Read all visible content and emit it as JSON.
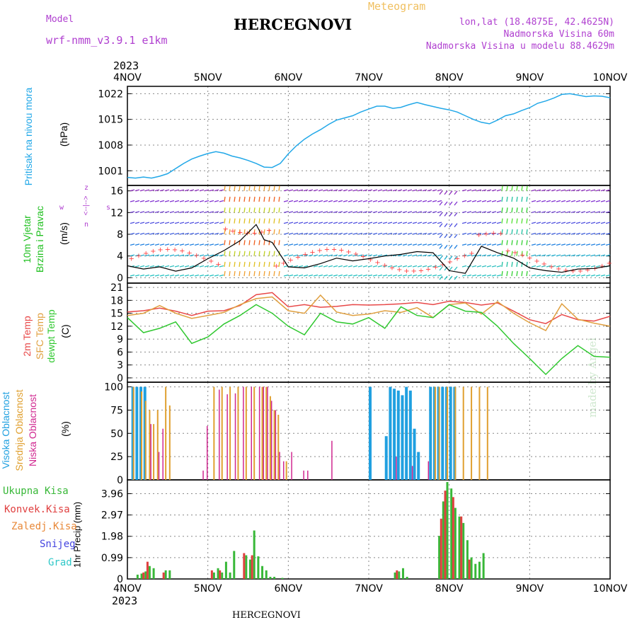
{
  "header": {
    "model_label": "Model",
    "model_name": "wrf-nmm_v3.9.1  e1km",
    "title": "HERCEGNOVI",
    "meteogram_label": "Meteogram",
    "lonlat": "lon,lat (18.4875E, 42.4625N)",
    "altitude": "Nadmorska Visina 60m",
    "model_altitude": "Nadmorska Visina u modelu 88.4629m",
    "year_top": "2023",
    "year_bottom": "2023",
    "footer_title": "HERCEGNOVI",
    "credit": "made by Angel"
  },
  "panel_labels": {
    "pressure": [
      "Pritisak na nivou mora",
      "(hPa)"
    ],
    "wind": [
      "10m Vjetar",
      "Brzina i Pravac",
      "(m/s)"
    ],
    "compass": [
      "w",
      "<--|-->",
      "s",
      "z",
      "|",
      "n"
    ],
    "temp": [
      "2m Temp",
      "SFC Temp",
      "dewpt Temp",
      "(C)"
    ],
    "cloud": [
      "Visoka Oblacnost",
      "Srednja Oblacnost",
      "Niska Oblacnost",
      "(%)"
    ],
    "precip_unit": "1hr Precip (mm)",
    "precip_legend": [
      "Ukupna Kisa",
      "Konvek.Kisa",
      "Zaledj.Kisa",
      "Snijeg",
      "Grad"
    ]
  },
  "colors": {
    "pressure": "#22a8e8",
    "temp2m": "#e84848",
    "sfc": "#e0a040",
    "dewpt": "#30c830",
    "high_cloud": "#20a0e0",
    "mid_cloud": "#e0a030",
    "low_cloud": "#d02890",
    "total_rain": "#38b838",
    "conv_rain": "#e04040",
    "froz_rain": "#e88838",
    "snow": "#4444e0",
    "hail": "#30c8c8",
    "wind_speed_line": "#000000",
    "gust_marks": "#ff4040"
  },
  "chart_data": [
    {
      "id": "pressure",
      "type": "line",
      "x_ticks": [
        "4NOV",
        "5NOV",
        "6NOV",
        "7NOV",
        "8NOV",
        "9NOV",
        "10NOV"
      ],
      "ylabel": "(hPa)",
      "y_ticks": [
        1001,
        1008,
        1015,
        1022
      ],
      "ylim": [
        997,
        1024
      ],
      "grid": true,
      "series": [
        {
          "x": [
            0,
            0.1,
            0.2,
            0.3,
            0.4,
            0.5,
            0.6,
            0.7,
            0.8,
            0.9,
            1.0,
            1.1,
            1.2,
            1.3,
            1.4,
            1.5,
            1.6,
            1.7,
            1.8,
            1.9,
            2.0,
            2.1,
            2.2,
            2.3,
            2.4,
            2.5,
            2.6,
            2.7,
            2.8,
            2.9,
            3.0,
            3.1,
            3.2,
            3.3,
            3.4,
            3.5,
            3.6,
            3.7,
            3.8,
            3.9,
            4.0,
            4.1,
            4.2,
            4.3,
            4.4,
            4.5,
            4.6,
            4.7,
            4.8,
            4.9,
            5.0,
            5.1,
            5.2,
            5.3,
            5.4,
            5.5,
            5.6,
            5.7,
            5.8,
            5.9,
            6.0
          ],
          "values": [
            999.2,
            999.0,
            999.3,
            999.0,
            999.5,
            1000.2,
            1001.6,
            1003.0,
            1004.2,
            1005.0,
            1005.7,
            1006.2,
            1005.8,
            1005.0,
            1004.5,
            1003.8,
            1003.0,
            1002.0,
            1001.9,
            1003.0,
            1005.6,
            1007.8,
            1009.6,
            1011.0,
            1012.2,
            1013.6,
            1014.8,
            1015.4,
            1016.0,
            1017.0,
            1017.8,
            1018.6,
            1018.6,
            1018.0,
            1018.3,
            1019.0,
            1019.6,
            1019.0,
            1018.5,
            1018.0,
            1017.6,
            1017.0,
            1016.0,
            1015.0,
            1014.2,
            1013.8,
            1014.8,
            1016.0,
            1016.5,
            1017.4,
            1018.2,
            1019.4,
            1020.0,
            1020.8,
            1021.8,
            1022.0,
            1021.6,
            1021.2,
            1021.4,
            1021.3,
            1020.9
          ]
        }
      ]
    },
    {
      "id": "wind",
      "type": "line",
      "ylabel": "(m/s)",
      "y_ticks": [
        0,
        4,
        8,
        12,
        16
      ],
      "ylim": [
        -1,
        17
      ],
      "grid": true,
      "series": [
        {
          "name": "wind_speed",
          "x": [
            0,
            0.2,
            0.4,
            0.6,
            0.8,
            1.0,
            1.2,
            1.4,
            1.6,
            1.7,
            1.8,
            2.0,
            2.2,
            2.4,
            2.6,
            2.8,
            3.0,
            3.2,
            3.4,
            3.6,
            3.8,
            4.0,
            4.2,
            4.4,
            4.6,
            4.8,
            5.0,
            5.2,
            5.4,
            5.6,
            5.8,
            6.0
          ],
          "values": [
            2.2,
            1.6,
            2.0,
            1.2,
            1.8,
            3.5,
            5.0,
            6.8,
            9.8,
            7.0,
            6.5,
            2.0,
            1.8,
            2.6,
            3.6,
            3.1,
            3.5,
            4.0,
            4.3,
            4.8,
            4.6,
            1.3,
            0.8,
            5.8,
            4.6,
            3.6,
            1.8,
            1.3,
            1.0,
            1.6,
            1.7,
            2.2
          ]
        }
      ]
    },
    {
      "id": "temperature",
      "type": "line",
      "ylabel": "(C)",
      "y_ticks": [
        0,
        3,
        6,
        9,
        12,
        15,
        18,
        21
      ],
      "ylim": [
        -1,
        22
      ],
      "grid": true,
      "series": [
        {
          "name": "2m Temp",
          "x": [
            0,
            0.2,
            0.4,
            0.6,
            0.8,
            1.0,
            1.2,
            1.4,
            1.6,
            1.8,
            2.0,
            2.2,
            2.4,
            2.6,
            2.8,
            3.0,
            3.2,
            3.4,
            3.6,
            3.8,
            4.0,
            4.2,
            4.4,
            4.6,
            4.8,
            5.0,
            5.2,
            5.4,
            5.6,
            5.8,
            6.0
          ],
          "values": [
            15.3,
            15.6,
            16.2,
            15.5,
            14.5,
            15.5,
            15.6,
            16.8,
            19.3,
            19.8,
            16.5,
            17.0,
            16.4,
            16.6,
            17.0,
            16.9,
            17.0,
            17.2,
            17.5,
            17.0,
            17.8,
            17.5,
            16.9,
            17.4,
            15.5,
            13.5,
            12.6,
            14.7,
            13.5,
            13.2,
            14.3
          ]
        },
        {
          "name": "SFC Temp",
          "x": [
            0,
            0.2,
            0.4,
            0.6,
            0.8,
            1.0,
            1.2,
            1.4,
            1.6,
            1.8,
            2.0,
            2.2,
            2.4,
            2.6,
            2.8,
            3.0,
            3.2,
            3.4,
            3.6,
            3.8,
            4.0,
            4.2,
            4.4,
            4.6,
            4.8,
            5.0,
            5.2,
            5.4,
            5.6,
            5.8,
            6.0
          ],
          "values": [
            14.5,
            15.0,
            16.8,
            15.0,
            13.8,
            14.5,
            15.2,
            17.0,
            18.4,
            18.8,
            15.6,
            15.0,
            19.2,
            15.3,
            14.5,
            14.8,
            15.6,
            15.2,
            16.3,
            14.0,
            17.0,
            17.4,
            14.8,
            17.7,
            15.0,
            12.8,
            11.0,
            17.2,
            13.6,
            12.7,
            12.0
          ]
        },
        {
          "name": "dewpt Temp",
          "x": [
            0,
            0.2,
            0.4,
            0.6,
            0.8,
            1.0,
            1.2,
            1.4,
            1.6,
            1.8,
            2.0,
            2.2,
            2.4,
            2.6,
            2.8,
            3.0,
            3.2,
            3.4,
            3.6,
            3.8,
            4.0,
            4.2,
            4.4,
            4.6,
            4.8,
            5.0,
            5.2,
            5.4,
            5.6,
            5.8,
            6.0
          ],
          "values": [
            14.0,
            10.5,
            11.5,
            13.0,
            8.0,
            9.5,
            12.5,
            14.5,
            17.0,
            15.0,
            12.0,
            10.0,
            15.0,
            13.0,
            12.5,
            14.0,
            11.5,
            16.5,
            14.5,
            14.0,
            17.0,
            15.5,
            15.2,
            12.0,
            8.0,
            4.5,
            0.8,
            4.5,
            7.5,
            5.0,
            4.8
          ]
        }
      ]
    },
    {
      "id": "cloud",
      "type": "bar",
      "ylabel": "(%)",
      "y_ticks": [
        0,
        25,
        50,
        75,
        100
      ],
      "ylim": [
        0,
        105
      ],
      "grid": true,
      "series": [
        {
          "name": "Visoka Oblacnost",
          "x": [
            0.05,
            0.1,
            0.15,
            0.2,
            3.0,
            3.2,
            3.25,
            3.3,
            3.35,
            3.4,
            3.45,
            3.5,
            3.55,
            3.6,
            3.75,
            3.8,
            3.85,
            3.9,
            3.95,
            4.0,
            4.05
          ],
          "values": [
            100,
            100,
            100,
            100,
            100,
            47,
            100,
            98,
            96,
            91,
            100,
            96,
            55,
            30,
            100,
            100,
            100,
            100,
            100,
            100,
            100
          ]
        },
        {
          "name": "Srednja Oblacnost",
          "x": [
            0.05,
            0.15,
            0.2,
            0.25,
            0.3,
            0.35,
            0.45,
            0.5,
            1.05,
            1.15,
            1.25,
            1.35,
            1.45,
            1.55,
            1.65,
            1.7,
            1.75,
            1.8,
            1.85,
            1.95,
            3.8,
            3.85,
            3.95,
            4.05,
            4.15,
            4.25,
            4.35,
            4.45
          ],
          "values": [
            100,
            95,
            85,
            75,
            60,
            75,
            100,
            80,
            100,
            100,
            100,
            100,
            100,
            100,
            100,
            100,
            90,
            75,
            70,
            20,
            100,
            100,
            100,
            100,
            100,
            100,
            100,
            100
          ]
        },
        {
          "name": "Niska Oblacnost",
          "x": [
            0.25,
            0.35,
            0.4,
            0.9,
            0.95,
            1.1,
            1.2,
            1.3,
            1.4,
            1.5,
            1.6,
            1.65,
            1.7,
            1.75,
            1.8,
            1.85,
            1.9,
            2.0,
            2.15,
            2.2,
            2.5,
            3.3,
            3.5,
            3.7
          ],
          "values": [
            60,
            30,
            55,
            10,
            58,
            97,
            92,
            93,
            100,
            100,
            100,
            100,
            100,
            85,
            75,
            30,
            20,
            30,
            10,
            10,
            42,
            25,
            15,
            20
          ]
        }
      ]
    },
    {
      "id": "precip",
      "type": "bar",
      "xlabel": "",
      "ylabel": "1hr Precip (mm)",
      "y_ticks": [
        0,
        0.99,
        1.98,
        2.97,
        3.96
      ],
      "ylim": [
        0,
        4.6
      ],
      "grid": true,
      "series": [
        {
          "name": "Ukupna Kisa",
          "x": [
            0.1,
            0.15,
            0.2,
            0.25,
            0.3,
            0.45,
            0.5,
            1.05,
            1.1,
            1.15,
            1.2,
            1.25,
            1.3,
            1.45,
            1.5,
            1.55,
            1.6,
            1.65,
            1.7,
            1.75,
            1.8,
            1.9,
            3.3,
            3.35,
            3.4,
            3.45,
            3.85,
            3.9,
            3.95,
            4.0,
            4.05,
            4.1,
            4.15,
            4.2,
            4.25,
            4.3,
            4.35,
            4.4
          ],
          "values": [
            0.2,
            0.25,
            0.35,
            0.6,
            0.5,
            0.4,
            0.4,
            0.3,
            0.5,
            0.3,
            0.8,
            0.3,
            1.3,
            1.1,
            0.9,
            2.25,
            1.05,
            0.6,
            0.4,
            0.1,
            0.1,
            0.05,
            0.3,
            0.35,
            0.5,
            0.1,
            2.0,
            3.6,
            4.5,
            4.2,
            3.3,
            2.9,
            2.6,
            1.8,
            1.0,
            0.7,
            0.8,
            1.2
          ]
        },
        {
          "name": "Konvek.Kisa",
          "x": [
            0.2,
            0.25,
            0.45,
            1.05,
            1.15,
            1.45,
            1.55,
            3.35,
            3.9,
            3.95,
            4.05,
            4.15,
            4.25
          ],
          "values": [
            0.3,
            0.8,
            0.3,
            0.4,
            0.4,
            1.2,
            1.1,
            0.4,
            2.8,
            4.1,
            3.8,
            2.9,
            0.9
          ]
        }
      ]
    }
  ]
}
